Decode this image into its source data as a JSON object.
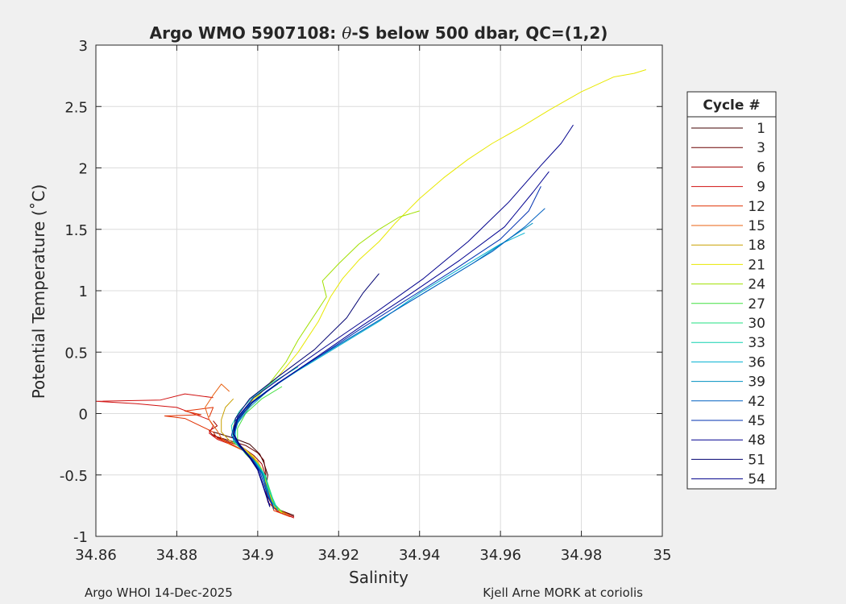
{
  "chart_data": {
    "type": "line",
    "title_prefix": "Argo WMO 5907108: ",
    "title_theta": "θ",
    "title_suffix": "-S below 500 dbar,  QC=(1,2)",
    "xlabel": "Salinity",
    "ylabel": "Potential Temperature (˚C)",
    "xlim": [
      34.86,
      35.0
    ],
    "ylim": [
      -1,
      3
    ],
    "xticks": [
      34.86,
      34.88,
      34.9,
      34.92,
      34.94,
      34.96,
      34.98,
      35
    ],
    "xtick_labels": [
      "34.86",
      "34.88",
      "34.9",
      "34.92",
      "34.94",
      "34.96",
      "34.98",
      "35"
    ],
    "yticks": [
      -1,
      -0.5,
      0,
      0.5,
      1,
      1.5,
      2,
      2.5,
      3
    ],
    "ytick_labels": [
      "-1",
      "-0.5",
      "0",
      "0.5",
      "1",
      "1.5",
      "2",
      "2.5",
      "3"
    ],
    "grid": true,
    "legend_title": "Cycle #",
    "legend_position": "outside-right",
    "legend_entries": [
      "1",
      "3",
      "6",
      "9",
      "12",
      "15",
      "18",
      "21",
      "24",
      "27",
      "30",
      "33",
      "36",
      "39",
      "42",
      "45",
      "48",
      "51",
      "54"
    ],
    "legend_colors": [
      "#400000",
      "#6a0000",
      "#a00000",
      "#d01010",
      "#e03000",
      "#e86010",
      "#c8a000",
      "#e8e800",
      "#a0e000",
      "#40e040",
      "#20e080",
      "#10d0b0",
      "#00b0d0",
      "#0090c0",
      "#0060c0",
      "#0030b0",
      "#000090",
      "#000070",
      "#00008c"
    ],
    "series": [
      {
        "color": "#400000",
        "x": [
          34.909,
          34.905,
          34.903,
          34.902,
          34.9025,
          34.9015,
          34.9005,
          34.898,
          34.894,
          34.891,
          34.889
        ],
        "y": [
          -0.83,
          -0.78,
          -0.7,
          -0.6,
          -0.5,
          -0.4,
          -0.33,
          -0.25,
          -0.2,
          -0.17,
          -0.15
        ]
      },
      {
        "color": "#6a0000",
        "x": [
          34.908,
          34.904,
          34.9025,
          34.902,
          34.902,
          34.9015,
          34.9,
          34.897,
          34.893,
          34.89,
          34.889
        ],
        "y": [
          -0.82,
          -0.77,
          -0.68,
          -0.58,
          -0.48,
          -0.38,
          -0.32,
          -0.26,
          -0.22,
          -0.19,
          -0.17
        ]
      },
      {
        "color": "#a00000",
        "x": [
          34.909,
          34.905,
          34.903,
          34.9025,
          34.902,
          34.901,
          34.899,
          34.896,
          34.892,
          34.889,
          34.888,
          34.89,
          34.889
        ],
        "y": [
          -0.84,
          -0.79,
          -0.71,
          -0.61,
          -0.51,
          -0.41,
          -0.34,
          -0.27,
          -0.22,
          -0.18,
          -0.14,
          -0.1,
          -0.06
        ]
      },
      {
        "color": "#d01010",
        "x": [
          34.909,
          34.905,
          34.9025,
          34.902,
          34.9015,
          34.9005,
          34.898,
          34.894,
          34.89,
          34.888,
          34.889,
          34.888,
          34.88,
          34.87,
          34.86,
          34.876,
          34.882,
          34.889
        ],
        "y": [
          -0.85,
          -0.8,
          -0.72,
          -0.62,
          -0.52,
          -0.42,
          -0.33,
          -0.26,
          -0.21,
          -0.16,
          -0.1,
          -0.05,
          0.05,
          0.08,
          0.1,
          0.11,
          0.16,
          0.13
        ]
      },
      {
        "color": "#e03000",
        "x": [
          34.908,
          34.904,
          34.903,
          34.902,
          34.9015,
          34.9,
          34.897,
          34.893,
          34.89,
          34.889,
          34.882,
          34.877,
          34.886,
          34.882,
          34.889,
          34.888
        ],
        "y": [
          -0.84,
          -0.79,
          -0.7,
          -0.6,
          -0.5,
          -0.4,
          -0.31,
          -0.24,
          -0.2,
          -0.15,
          -0.04,
          -0.02,
          -0.01,
          0.02,
          0.05,
          -0.03
        ]
      },
      {
        "color": "#e86010",
        "x": [
          34.908,
          34.905,
          34.903,
          34.9025,
          34.9015,
          34.9,
          34.897,
          34.893,
          34.891,
          34.89,
          34.888,
          34.887,
          34.889,
          34.891,
          34.893
        ],
        "y": [
          -0.83,
          -0.78,
          -0.69,
          -0.59,
          -0.49,
          -0.39,
          -0.31,
          -0.25,
          -0.2,
          -0.14,
          -0.05,
          0.05,
          0.15,
          0.24,
          0.18
        ]
      },
      {
        "color": "#c8a000",
        "x": [
          34.907,
          34.904,
          34.903,
          34.902,
          34.901,
          34.899,
          34.896,
          34.893,
          34.891,
          34.891,
          34.892,
          34.894
        ],
        "y": [
          -0.82,
          -0.76,
          -0.66,
          -0.56,
          -0.46,
          -0.36,
          -0.28,
          -0.22,
          -0.15,
          -0.05,
          0.05,
          0.12
        ]
      },
      {
        "color": "#e8e800",
        "x": [
          34.906,
          34.904,
          34.903,
          34.902,
          34.901,
          34.899,
          34.896,
          34.894,
          34.894,
          34.897,
          34.9,
          34.905,
          34.91,
          34.915,
          34.918,
          34.921,
          34.925,
          34.93,
          34.934,
          34.94,
          34.946,
          34.952,
          34.958,
          34.965,
          34.972,
          34.98,
          34.988,
          34.993,
          34.996
        ],
        "y": [
          -0.81,
          -0.75,
          -0.65,
          -0.55,
          -0.45,
          -0.35,
          -0.27,
          -0.2,
          -0.1,
          0.05,
          0.15,
          0.3,
          0.5,
          0.75,
          0.95,
          1.1,
          1.25,
          1.4,
          1.55,
          1.75,
          1.92,
          2.07,
          2.2,
          2.33,
          2.47,
          2.62,
          2.74,
          2.77,
          2.8
        ]
      },
      {
        "color": "#a0e000",
        "x": [
          34.906,
          34.904,
          34.903,
          34.902,
          34.9005,
          34.898,
          34.895,
          34.894,
          34.896,
          34.899,
          34.903,
          34.907,
          34.91,
          34.914,
          34.917,
          34.916,
          34.92,
          34.925,
          34.93,
          34.935,
          34.94
        ],
        "y": [
          -0.8,
          -0.74,
          -0.64,
          -0.54,
          -0.44,
          -0.34,
          -0.25,
          -0.15,
          -0.02,
          0.1,
          0.25,
          0.42,
          0.6,
          0.8,
          0.95,
          1.08,
          1.22,
          1.38,
          1.5,
          1.6,
          1.65
        ]
      },
      {
        "color": "#40e040",
        "x": [
          34.906,
          34.904,
          34.903,
          34.902,
          34.9,
          34.897,
          34.895,
          34.895,
          34.897,
          34.901,
          34.906
        ],
        "y": [
          -0.8,
          -0.73,
          -0.63,
          -0.53,
          -0.43,
          -0.33,
          -0.24,
          -0.12,
          0.0,
          0.12,
          0.22
        ]
      },
      {
        "color": "#20e080",
        "x": [
          34.905,
          34.904,
          34.903,
          34.902,
          34.9,
          34.897,
          34.894,
          34.894,
          34.896,
          34.9,
          34.905
        ],
        "y": [
          -0.79,
          -0.72,
          -0.62,
          -0.52,
          -0.42,
          -0.32,
          -0.23,
          -0.11,
          0.01,
          0.13,
          0.24
        ]
      },
      {
        "color": "#10d0b0",
        "x": [
          34.905,
          34.904,
          34.9025,
          34.902,
          34.9,
          34.897,
          34.894,
          34.8935,
          34.8955,
          34.899,
          34.904,
          34.91
        ],
        "y": [
          -0.79,
          -0.71,
          -0.61,
          -0.51,
          -0.41,
          -0.31,
          -0.22,
          -0.1,
          0.02,
          0.14,
          0.26,
          0.38
        ]
      },
      {
        "color": "#00b0d0",
        "x": [
          34.905,
          34.903,
          34.902,
          34.9015,
          34.8995,
          34.8965,
          34.8945,
          34.8945,
          34.897,
          34.902,
          34.91,
          34.92,
          34.93,
          34.94,
          34.95,
          34.96,
          34.966
        ],
        "y": [
          -0.78,
          -0.7,
          -0.6,
          -0.5,
          -0.4,
          -0.3,
          -0.21,
          -0.09,
          0.04,
          0.18,
          0.35,
          0.55,
          0.75,
          0.98,
          1.18,
          1.38,
          1.47
        ]
      },
      {
        "color": "#0090c0",
        "x": [
          34.904,
          34.903,
          34.902,
          34.901,
          34.899,
          34.896,
          34.894,
          34.895,
          34.898,
          34.903,
          34.911,
          34.921,
          34.932,
          34.943,
          34.953,
          34.962,
          34.968
        ],
        "y": [
          -0.78,
          -0.69,
          -0.59,
          -0.49,
          -0.39,
          -0.29,
          -0.2,
          -0.08,
          0.05,
          0.2,
          0.38,
          0.58,
          0.8,
          1.02,
          1.22,
          1.42,
          1.55
        ]
      },
      {
        "color": "#0060c0",
        "x": [
          34.904,
          34.903,
          34.902,
          34.901,
          34.899,
          34.896,
          34.894,
          34.895,
          34.898,
          34.904,
          34.912,
          34.923,
          34.935,
          34.947,
          34.958,
          34.966,
          34.971
        ],
        "y": [
          -0.77,
          -0.68,
          -0.58,
          -0.48,
          -0.38,
          -0.28,
          -0.19,
          -0.07,
          0.07,
          0.22,
          0.4,
          0.62,
          0.86,
          1.1,
          1.32,
          1.52,
          1.67
        ]
      },
      {
        "color": "#0030b0",
        "x": [
          34.904,
          34.9025,
          34.9015,
          34.9005,
          34.8985,
          34.8955,
          34.8935,
          34.8945,
          34.898,
          34.905,
          34.914,
          34.925,
          34.937,
          34.949,
          34.96,
          34.967,
          34.97
        ],
        "y": [
          -0.77,
          -0.67,
          -0.57,
          -0.47,
          -0.37,
          -0.27,
          -0.18,
          -0.06,
          0.08,
          0.25,
          0.44,
          0.68,
          0.93,
          1.18,
          1.42,
          1.65,
          1.85
        ]
      },
      {
        "color": "#000090",
        "x": [
          34.903,
          34.902,
          34.901,
          34.9,
          34.898,
          34.8955,
          34.894,
          34.895,
          34.899,
          34.906,
          34.915,
          34.926,
          34.938,
          34.95,
          34.961,
          34.968,
          34.972
        ],
        "y": [
          -0.76,
          -0.66,
          -0.56,
          -0.46,
          -0.36,
          -0.26,
          -0.17,
          -0.05,
          0.1,
          0.27,
          0.47,
          0.72,
          0.98,
          1.25,
          1.52,
          1.8,
          1.97
        ]
      },
      {
        "color": "#000070",
        "x": [
          34.903,
          34.902,
          34.901,
          34.9,
          34.898,
          34.8955,
          34.894,
          34.8945,
          34.898,
          34.905,
          34.914,
          34.922,
          34.926,
          34.93
        ],
        "y": [
          -0.76,
          -0.66,
          -0.56,
          -0.46,
          -0.36,
          -0.26,
          -0.17,
          -0.04,
          0.12,
          0.3,
          0.52,
          0.78,
          0.98,
          1.14
        ]
      },
      {
        "color": "#00008c",
        "x": [
          34.903,
          34.902,
          34.901,
          34.9,
          34.898,
          34.8955,
          34.894,
          34.895,
          34.899,
          34.907,
          34.917,
          34.929,
          34.941,
          34.952,
          34.962,
          34.97,
          34.975,
          34.978
        ],
        "y": [
          -0.75,
          -0.65,
          -0.55,
          -0.45,
          -0.35,
          -0.25,
          -0.16,
          -0.03,
          0.13,
          0.32,
          0.55,
          0.82,
          1.1,
          1.4,
          1.72,
          2.02,
          2.2,
          2.35
        ]
      }
    ]
  },
  "footer": {
    "left": "Argo WHOI 14-Dec-2025",
    "right": "Kjell Arne MORK at coriolis"
  }
}
